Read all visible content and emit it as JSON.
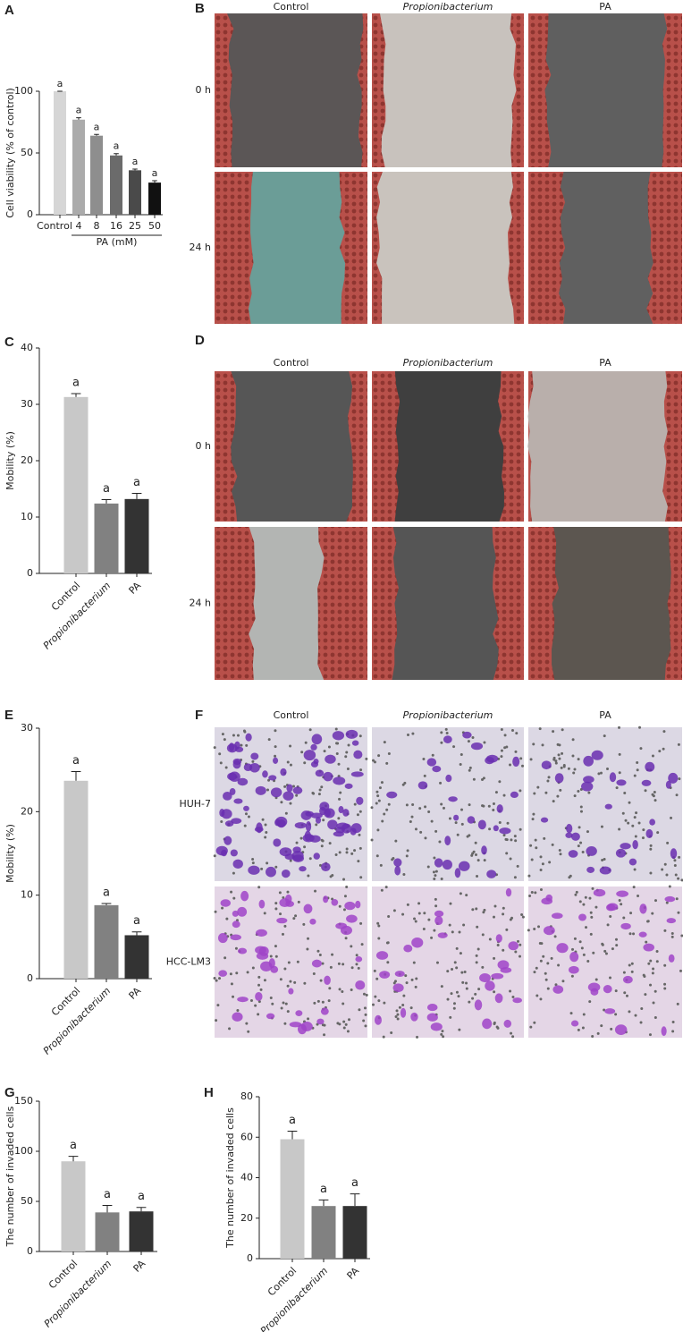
{
  "chart_data": [
    {
      "type": "bar",
      "panel": "A",
      "ylabel": "Cell viability (% of control)",
      "xlabel": "PA (mM)",
      "categories": [
        "Control",
        "4",
        "8",
        "16",
        "25",
        "50"
      ],
      "values": [
        100,
        77,
        64,
        48,
        36,
        26
      ],
      "errors": [
        0,
        1.5,
        1,
        1.5,
        1,
        1.5
      ],
      "annotations": [
        "a",
        "a",
        "a",
        "a",
        "a",
        "a"
      ],
      "colors": [
        "#d6d6d6",
        "#ababab",
        "#8e8e8e",
        "#6b6b6b",
        "#4a4a4a",
        "#111111"
      ],
      "ylim": [
        0,
        100
      ],
      "yticks": [
        0,
        50,
        100
      ]
    },
    {
      "type": "bar",
      "panel": "C",
      "ylabel": "Mobility (%)",
      "categories": [
        "Control",
        "Propionibacterium",
        "PA"
      ],
      "values": [
        31.3,
        12.4,
        13.2
      ],
      "errors": [
        0.6,
        0.7,
        1.0
      ],
      "annotations": [
        "a",
        "a",
        "a"
      ],
      "colors": [
        "#c8c8c8",
        "#818181",
        "#333333"
      ],
      "ylim": [
        0,
        40
      ],
      "yticks": [
        0,
        10,
        20,
        30,
        40
      ]
    },
    {
      "type": "bar",
      "panel": "E",
      "ylabel": "Mobility (%)",
      "categories": [
        "Control",
        "Propionibacterium",
        "PA"
      ],
      "values": [
        23.7,
        8.8,
        5.2
      ],
      "errors": [
        1.1,
        0.2,
        0.4
      ],
      "annotations": [
        "a",
        "a",
        "a"
      ],
      "colors": [
        "#c8c8c8",
        "#818181",
        "#333333"
      ],
      "ylim": [
        0,
        30
      ],
      "yticks": [
        0,
        10,
        20,
        30
      ]
    },
    {
      "type": "bar",
      "panel": "G",
      "ylabel": "The number of invaded cells",
      "categories": [
        "Control",
        "Propionibacterium",
        "PA"
      ],
      "values": [
        90,
        39,
        40
      ],
      "errors": [
        5,
        7,
        4
      ],
      "annotations": [
        "a",
        "a",
        "a"
      ],
      "colors": [
        "#c8c8c8",
        "#818181",
        "#333333"
      ],
      "ylim": [
        0,
        150
      ],
      "yticks": [
        0,
        50,
        100,
        150
      ]
    },
    {
      "type": "bar",
      "panel": "H",
      "ylabel": "The number of invaded cells",
      "categories": [
        "Control",
        "Propionibacterium",
        "PA"
      ],
      "values": [
        59,
        26,
        26
      ],
      "errors": [
        4,
        3,
        6
      ],
      "annotations": [
        "a",
        "a",
        "a"
      ],
      "colors": [
        "#c8c8c8",
        "#818181",
        "#333333"
      ],
      "ylim": [
        0,
        80
      ],
      "yticks": [
        0,
        20,
        40,
        60,
        80
      ]
    }
  ],
  "image_panels": [
    {
      "panel": "B",
      "columns": [
        "Control",
        "Propionibacterium",
        "PA"
      ],
      "rows": [
        "0 h",
        "24 h"
      ]
    },
    {
      "panel": "D",
      "columns": [
        "Control",
        "Propionibacterium",
        "PA"
      ],
      "rows": [
        "0 h",
        "24 h"
      ]
    },
    {
      "panel": "F",
      "columns": [
        "Control",
        "Propionibacterium",
        "PA"
      ],
      "rows": [
        "HUH-7",
        "HCC-LM3"
      ]
    }
  ]
}
